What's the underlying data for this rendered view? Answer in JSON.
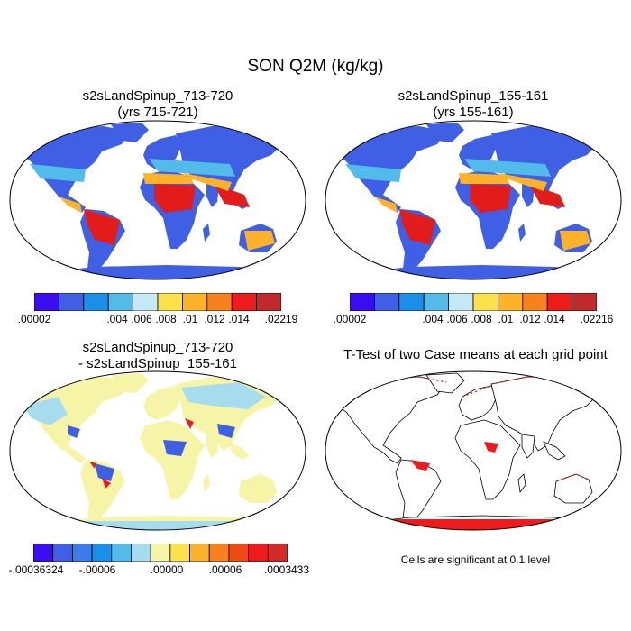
{
  "title": "SON Q2M (kg/kg)",
  "panels": [
    {
      "title_line1": "s2sLandSpinup_713-720",
      "title_line2": "(yrs 715-721)"
    },
    {
      "title_line1": "s2sLandSpinup_155-161",
      "title_line2": "(yrs 155-161)"
    },
    {
      "title_line1": "s2sLandSpinup_713-720",
      "title_line2": "- s2sLandSpinup_155-161"
    },
    {
      "title_line1": "T-Test of two Case means at each grid point",
      "title_line2": ""
    }
  ],
  "colorbars": {
    "abs1": {
      "colors": [
        "#3a0ef0",
        "#3f5fe4",
        "#1a8fea",
        "#52bbea",
        "#c5e8f5",
        "#fde14a",
        "#fdb22a",
        "#f7811d",
        "#ed1b1b",
        "#c02a2a"
      ],
      "ticks": [
        ".00002",
        ".004",
        ".006",
        ".008",
        ".01",
        ".012",
        ".014",
        ".02219"
      ]
    },
    "abs2": {
      "colors": [
        "#3a0ef0",
        "#3f5fe4",
        "#1a8fea",
        "#52bbea",
        "#c5e8f5",
        "#fde14a",
        "#fdb22a",
        "#f7811d",
        "#ed1b1b",
        "#c02a2a"
      ],
      "ticks": [
        ".00002",
        ".004",
        ".006",
        ".008",
        ".01",
        ".012",
        ".014",
        ".02216"
      ]
    },
    "diff": {
      "colors": [
        "#3a0ef0",
        "#3f5fe4",
        "#3d7ce8",
        "#1a8fea",
        "#52bbea",
        "#a7dcef",
        "#f6f4a6",
        "#fde14a",
        "#fdb22a",
        "#f7811d",
        "#f04a14",
        "#ed1b1b",
        "#d32a2a"
      ],
      "ticks": [
        "-.00036324",
        "-.00006",
        ".00000",
        ".00006",
        ".0003433"
      ]
    }
  },
  "significance_note": "Cells are significant at 0.1 level",
  "chart_data": [
    {
      "type": "heatmap",
      "title": "s2sLandSpinup_713-720 (yrs 715-721)",
      "variable": "Q2M",
      "units": "kg/kg",
      "season": "SON",
      "range": [
        2e-05,
        0.02219
      ],
      "levels": [
        2e-05,
        0.004,
        0.006,
        0.008,
        0.01,
        0.012,
        0.014,
        0.02219
      ]
    },
    {
      "type": "heatmap",
      "title": "s2sLandSpinup_155-161 (yrs 155-161)",
      "variable": "Q2M",
      "units": "kg/kg",
      "season": "SON",
      "range": [
        2e-05,
        0.02216
      ],
      "levels": [
        2e-05,
        0.004,
        0.006,
        0.008,
        0.01,
        0.012,
        0.014,
        0.02216
      ]
    },
    {
      "type": "heatmap",
      "title": "s2sLandSpinup_713-720 - s2sLandSpinup_155-161",
      "variable": "Q2M difference",
      "units": "kg/kg",
      "range": [
        -0.00036324,
        0.0003433
      ],
      "levels": [
        -0.00036324,
        -6e-05,
        0.0,
        6e-05,
        0.0003433
      ]
    },
    {
      "type": "heatmap",
      "title": "T-Test of two Case means at each grid point",
      "significance_level": 0.1
    }
  ]
}
